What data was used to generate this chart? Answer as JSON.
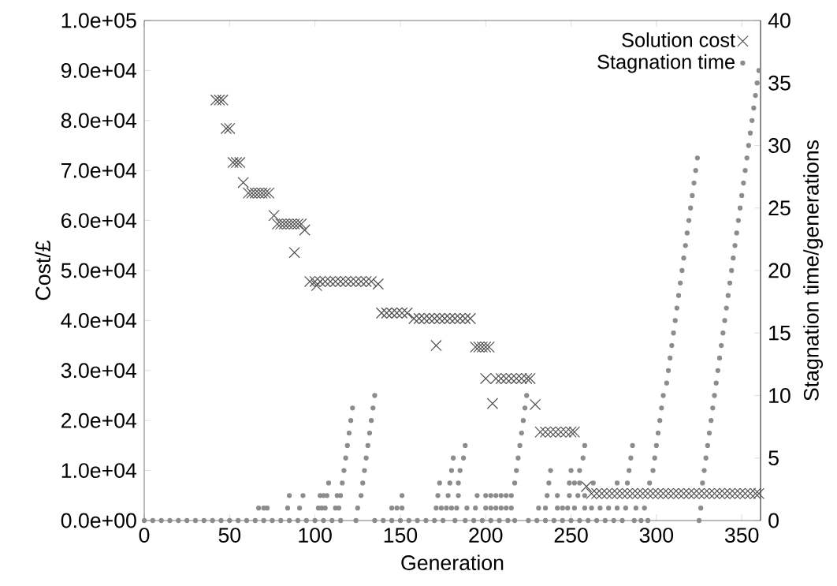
{
  "chart_data": {
    "type": "scatter",
    "xlabel": "Generation",
    "ylabel": "Cost/£",
    "y2label": "Stagnation time/generations",
    "xlim": [
      0,
      361
    ],
    "xticks": [
      0,
      50,
      100,
      150,
      200,
      250,
      300,
      350
    ],
    "ylim": [
      0,
      100000
    ],
    "yticks": [
      {
        "value": 0,
        "label": "0.0e+00"
      },
      {
        "value": 10000,
        "label": "1.0e+04"
      },
      {
        "value": 20000,
        "label": "2.0e+04"
      },
      {
        "value": 30000,
        "label": "3.0e+04"
      },
      {
        "value": 40000,
        "label": "4.0e+04"
      },
      {
        "value": 50000,
        "label": "5.0e+04"
      },
      {
        "value": 60000,
        "label": "6.0e+04"
      },
      {
        "value": 70000,
        "label": "7.0e+04"
      },
      {
        "value": 80000,
        "label": "8.0e+04"
      },
      {
        "value": 90000,
        "label": "9.0e+04"
      },
      {
        "value": 100000,
        "label": "1.0e+05"
      }
    ],
    "y2lim": [
      0,
      40
    ],
    "y2ticks": [
      0,
      5,
      10,
      15,
      20,
      25,
      30,
      35,
      40
    ],
    "legend": "top right",
    "grid": false,
    "series": [
      {
        "name": "Solution cost",
        "marker": "cross",
        "color": "#505050",
        "x": [
          42,
          44,
          46,
          48,
          50,
          52,
          54,
          56,
          58,
          61,
          63,
          65,
          67,
          69,
          71,
          73,
          76,
          78,
          80,
          82,
          84,
          86,
          88,
          88,
          90,
          92,
          94,
          97,
          100,
          101,
          103,
          106,
          109,
          112,
          115,
          118,
          121,
          124,
          127,
          130,
          133,
          137,
          139,
          142,
          145,
          148,
          151,
          154,
          158,
          161,
          164,
          167,
          170,
          171,
          173,
          176,
          179,
          182,
          185,
          188,
          191,
          194,
          196,
          198,
          200,
          200,
          202,
          204,
          206,
          209,
          212,
          215,
          218,
          221,
          224,
          226,
          229,
          232,
          235,
          238,
          241,
          244,
          247,
          250,
          252,
          259,
          262,
          265,
          268,
          271,
          274,
          277,
          280,
          283,
          286,
          289,
          292,
          295,
          298,
          301,
          304,
          307,
          310,
          313,
          316,
          319,
          322,
          325,
          328,
          331,
          334,
          337,
          340,
          343,
          346,
          349,
          352,
          355,
          358,
          360
        ],
        "values": [
          84100,
          84100,
          84100,
          78400,
          78400,
          71600,
          71600,
          71600,
          67600,
          65500,
          65500,
          65500,
          65500,
          65500,
          65500,
          65500,
          61000,
          59300,
          59300,
          59300,
          59300,
          59300,
          59300,
          53600,
          59300,
          59300,
          58100,
          47800,
          47800,
          47000,
          47800,
          47800,
          47800,
          47800,
          47800,
          47800,
          47800,
          47800,
          47800,
          47800,
          47800,
          47300,
          41500,
          41500,
          41500,
          41500,
          41500,
          41500,
          40400,
          40400,
          40400,
          40400,
          40400,
          35000,
          40400,
          40400,
          40400,
          40400,
          40400,
          40400,
          40400,
          34700,
          34700,
          34700,
          34700,
          28400,
          34700,
          23400,
          28400,
          28400,
          28400,
          28400,
          28400,
          28400,
          28400,
          28400,
          23200,
          17700,
          17700,
          17700,
          17700,
          17700,
          17700,
          17700,
          17700,
          6800,
          5400,
          5400,
          5400,
          5400,
          5400,
          5400,
          5400,
          5400,
          5400,
          5400,
          5400,
          5400,
          5400,
          5400,
          5400,
          5400,
          5400,
          5400,
          5400,
          5400,
          5400,
          5400,
          5400,
          5400,
          5400,
          5400,
          5400,
          5400,
          5400,
          5400,
          5400,
          5400,
          5400,
          5400
        ]
      },
      {
        "name": "Stagnation time",
        "marker": "circle",
        "color": "#8c8c8c",
        "axis": "y2",
        "x": [
          0,
          5,
          10,
          15,
          20,
          25,
          30,
          35,
          40,
          45,
          50,
          55,
          60,
          65,
          67,
          70,
          70,
          72,
          75,
          80,
          84,
          85,
          85,
          90,
          91,
          93,
          95,
          100,
          102,
          103,
          104,
          105,
          105,
          106,
          107,
          108,
          110,
          112,
          113,
          114,
          115,
          115,
          116,
          117,
          118,
          119,
          120,
          121,
          122,
          124,
          125,
          127,
          128,
          129,
          130,
          131,
          132,
          133,
          134,
          135,
          135,
          140,
          145,
          145,
          148,
          150,
          151,
          151,
          155,
          160,
          165,
          170,
          171,
          172,
          173,
          174,
          175,
          177,
          178,
          179,
          180,
          180,
          181,
          182,
          183,
          184,
          184,
          185,
          187,
          188,
          188,
          189,
          193,
          194,
          195,
          198,
          200,
          200,
          203,
          203,
          203,
          206,
          206,
          208,
          209,
          209,
          212,
          212,
          213,
          215,
          215,
          217,
          217,
          218,
          219,
          220,
          221,
          222,
          223,
          224,
          225,
          230,
          231,
          235,
          235,
          236,
          237,
          238,
          240,
          242,
          242,
          245,
          245,
          248,
          249,
          249,
          250,
          250,
          252,
          252,
          254,
          255,
          255,
          255,
          257,
          258,
          258,
          258,
          260,
          262,
          263,
          265,
          267,
          270,
          272,
          275,
          277,
          277,
          280,
          282,
          283,
          284,
          285,
          286,
          287,
          288,
          291,
          293,
          295,
          296,
          298,
          299,
          300,
          301,
          302,
          303,
          304,
          306,
          307,
          308,
          309,
          310,
          311,
          312,
          313,
          314,
          315,
          316,
          317,
          318,
          319,
          320,
          321,
          322,
          323,
          324,
          325,
          326,
          327,
          328,
          329,
          330,
          331,
          332,
          333,
          334,
          335,
          336,
          337,
          338,
          339,
          340,
          341,
          342,
          343,
          344,
          345,
          346,
          347,
          348,
          349,
          350,
          351,
          352,
          353,
          354,
          355,
          356,
          357,
          358,
          359,
          360
        ],
        "values": [
          0,
          0,
          0,
          0,
          0,
          0,
          0,
          0,
          0,
          0,
          0,
          0,
          0,
          0,
          1,
          0,
          1,
          1,
          0,
          0,
          1,
          0,
          2,
          0,
          1,
          2,
          0,
          0,
          1,
          2,
          1,
          0,
          2,
          1,
          2,
          3,
          0,
          1,
          2,
          1,
          0,
          2,
          3,
          4,
          5,
          6,
          7,
          8,
          9,
          0,
          1,
          2,
          3,
          4,
          5,
          6,
          7,
          8,
          9,
          10,
          0,
          0,
          0,
          1,
          1,
          0,
          1,
          2,
          0,
          0,
          0,
          0,
          1,
          2,
          3,
          1,
          0,
          1,
          2,
          3,
          4,
          1,
          5,
          0,
          1,
          2,
          3,
          4,
          5,
          6,
          0,
          1,
          0,
          1,
          2,
          0,
          1,
          2,
          0,
          1,
          2,
          1,
          2,
          0,
          1,
          2,
          1,
          2,
          0,
          1,
          2,
          0,
          3,
          4,
          5,
          6,
          7,
          8,
          9,
          10,
          0,
          0,
          1,
          0,
          1,
          2,
          3,
          4,
          0,
          1,
          2,
          0,
          1,
          1,
          2,
          3,
          0,
          4,
          1,
          3,
          2,
          0,
          3,
          4,
          5,
          1,
          2,
          6,
          0,
          1,
          3,
          0,
          1,
          0,
          1,
          0,
          1,
          3,
          0,
          1,
          3,
          4,
          5,
          6,
          0,
          1,
          0,
          1,
          0,
          3,
          4,
          5,
          6,
          7,
          8,
          9,
          10,
          11,
          12,
          13,
          14,
          15,
          16,
          17,
          18,
          19,
          20,
          21,
          22,
          23,
          24,
          25,
          26,
          27,
          28,
          29,
          0,
          1,
          3,
          4,
          5,
          6,
          7,
          8,
          9,
          10,
          11,
          12,
          13,
          14,
          15,
          16,
          17,
          18,
          19,
          20,
          21,
          22,
          23,
          24,
          25,
          26,
          27,
          28,
          29,
          30,
          31,
          32,
          33,
          34,
          35,
          36
        ]
      }
    ]
  }
}
